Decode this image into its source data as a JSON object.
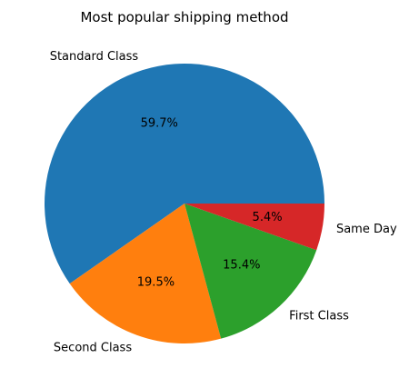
{
  "chart_data": {
    "type": "pie",
    "title": "Most popular shipping method",
    "slices": [
      {
        "label": "Standard Class",
        "value": 59.7,
        "pct_label": "59.7%",
        "color": "#1f77b4"
      },
      {
        "label": "Second Class",
        "value": 19.5,
        "pct_label": "19.5%",
        "color": "#ff7f0e"
      },
      {
        "label": "First Class",
        "value": 15.4,
        "pct_label": "15.4%",
        "color": "#2ca02c"
      },
      {
        "label": "Same Day",
        "value": 5.4,
        "pct_label": "5.4%",
        "color": "#d62728"
      }
    ],
    "start_angle_deg": 0,
    "direction": "counterclockwise",
    "legend": "none"
  }
}
